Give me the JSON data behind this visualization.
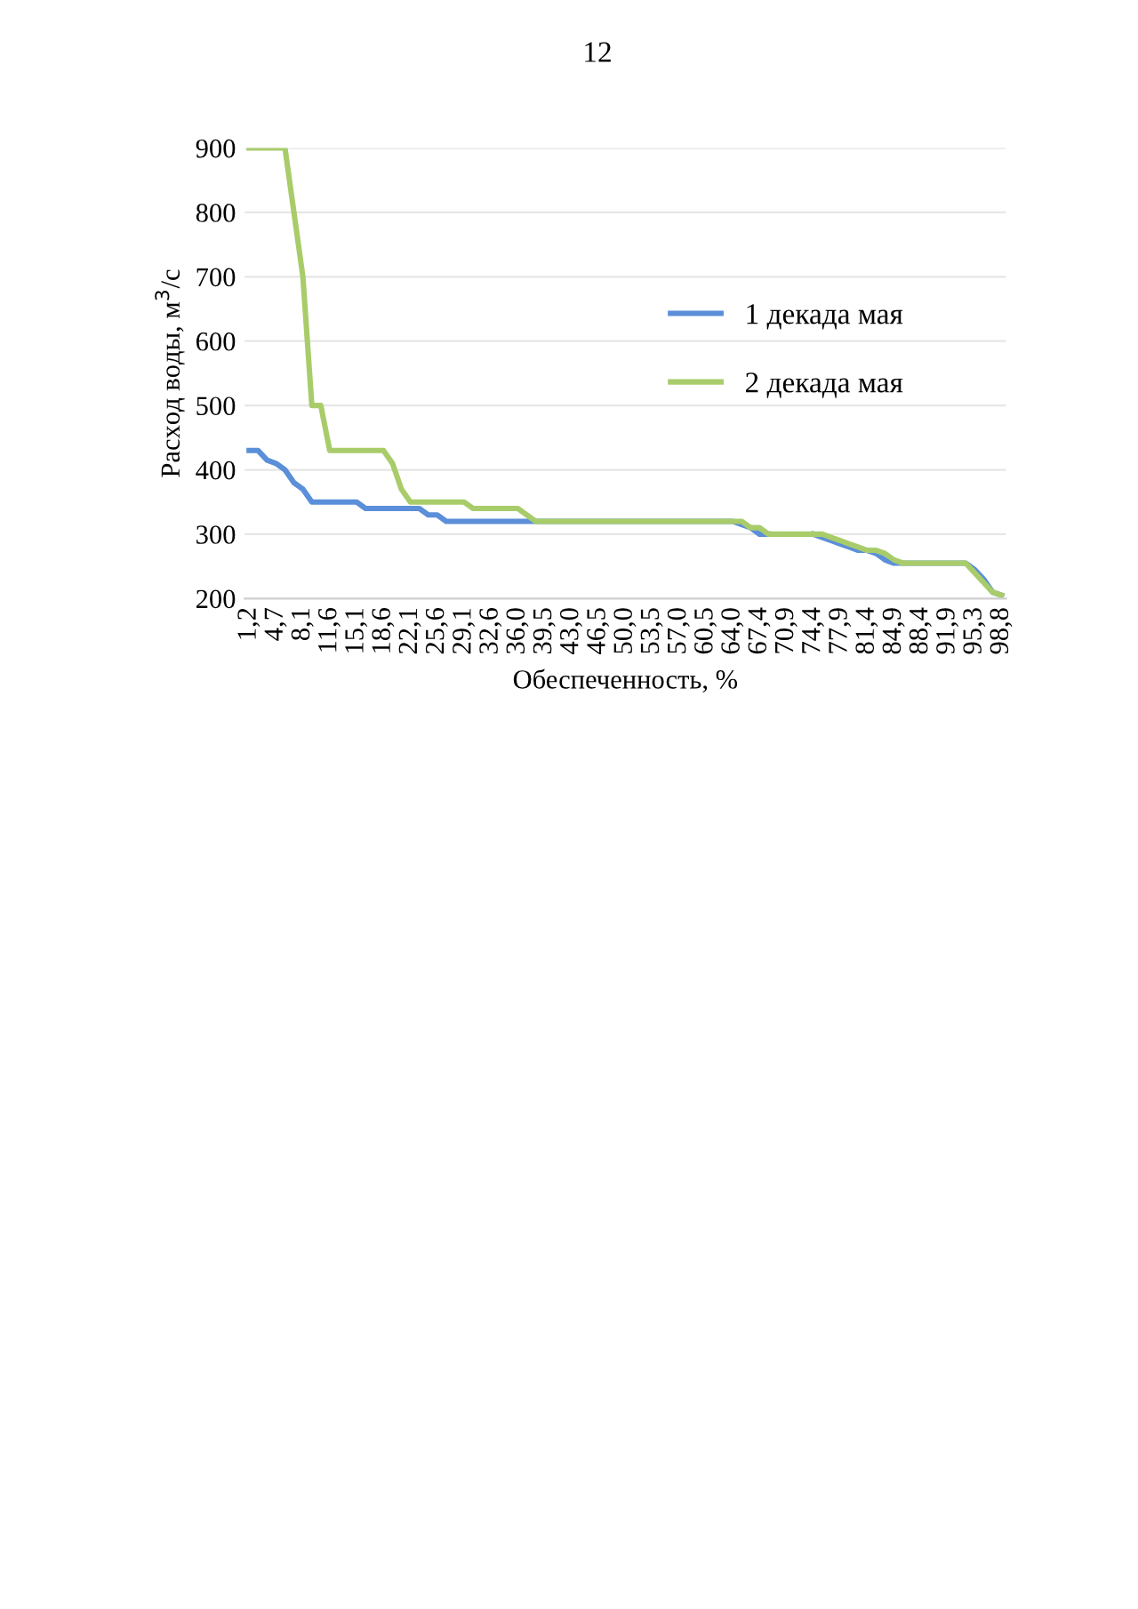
{
  "chart_data": {
    "type": "line",
    "xlabel": "Обеспеченность, %",
    "ylabel": "Расход воды, м$^{3}$/с",
    "annotations": [
      "12"
    ],
    "categories": [
      "1,2",
      null,
      null,
      "4,7",
      null,
      null,
      "8,1",
      null,
      null,
      "11,6",
      null,
      null,
      "15,1",
      null,
      null,
      "18,6",
      null,
      null,
      "22,1",
      null,
      null,
      "25,6",
      null,
      null,
      "29,1",
      null,
      null,
      "32,6",
      null,
      null,
      "36,0",
      null,
      null,
      "39,5",
      null,
      null,
      "43,0",
      null,
      null,
      "46,5",
      null,
      null,
      "50,0",
      null,
      null,
      "53,5",
      null,
      null,
      "57,0",
      null,
      null,
      "60,5",
      null,
      null,
      "64,0",
      null,
      null,
      "67,4",
      null,
      null,
      "70,9",
      null,
      null,
      "74,4",
      null,
      null,
      "77,9",
      null,
      null,
      "81,4",
      null,
      null,
      "84,9",
      null,
      null,
      "88,4",
      null,
      null,
      "91,9",
      null,
      null,
      "95,3",
      null,
      null,
      "98,8"
    ],
    "series": [
      {
        "name": "1 декада мая",
        "color": "#5b8fd9",
        "values": [
          430,
          430,
          415,
          410,
          400,
          380,
          370,
          350,
          350,
          350,
          350,
          350,
          350,
          340,
          340,
          340,
          340,
          340,
          340,
          340,
          330,
          330,
          320,
          320,
          320,
          320,
          320,
          320,
          320,
          320,
          320,
          320,
          320,
          320,
          320,
          320,
          320,
          320,
          320,
          320,
          320,
          320,
          320,
          320,
          320,
          320,
          320,
          320,
          320,
          320,
          320,
          320,
          320,
          320,
          320,
          315,
          310,
          300,
          300,
          null,
          null,
          null,
          null,
          300,
          295,
          290,
          285,
          280,
          275,
          275,
          270,
          260,
          255,
          255,
          255,
          255,
          255,
          255,
          255,
          255,
          255,
          245,
          230,
          210,
          205
        ]
      },
      {
        "name": "2 декада мая",
        "color": "#a9cc6a",
        "values": [
          900,
          900,
          900,
          900,
          900,
          800,
          700,
          500,
          500,
          430,
          430,
          430,
          430,
          430,
          430,
          430,
          410,
          370,
          350,
          350,
          350,
          350,
          350,
          350,
          350,
          340,
          340,
          340,
          340,
          340,
          340,
          330,
          320,
          320,
          320,
          320,
          320,
          320,
          320,
          320,
          320,
          320,
          320,
          320,
          320,
          320,
          320,
          320,
          320,
          320,
          320,
          320,
          320,
          320,
          320,
          320,
          310,
          310,
          300,
          300,
          300,
          300,
          300,
          300,
          300,
          295,
          290,
          285,
          280,
          275,
          275,
          270,
          260,
          255,
          255,
          255,
          255,
          255,
          255,
          255,
          255,
          240,
          225,
          210,
          205
        ]
      }
    ],
    "ylim": [
      200,
      900
    ],
    "yticks": [
      200,
      300,
      400,
      500,
      600,
      700,
      800,
      900
    ],
    "grid": "y",
    "legend": "right",
    "marker": "none",
    "line_style": "solid"
  }
}
